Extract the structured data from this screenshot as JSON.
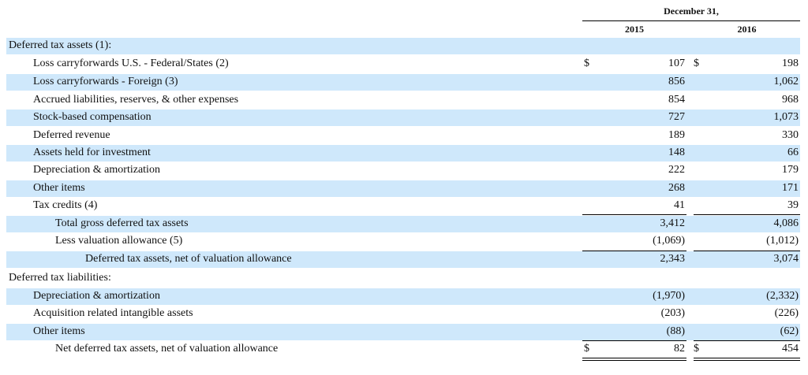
{
  "header": {
    "period": "December 31,",
    "year1": "2015",
    "year2": "2016"
  },
  "currency_symbol": "$",
  "rows": [
    {
      "label": "Deferred tax assets (1):",
      "v1": "",
      "v2": "",
      "shaded": true
    },
    {
      "label": "Loss carryforwards U.S. - Federal/States (2)",
      "v1": "107",
      "v2": "198",
      "shaded": false
    },
    {
      "label": "Loss carryforwards - Foreign (3)",
      "v1": "856",
      "v2": "1,062",
      "shaded": true
    },
    {
      "label": "Accrued liabilities, reserves, & other expenses",
      "v1": "854",
      "v2": "968",
      "shaded": false
    },
    {
      "label": "Stock-based compensation",
      "v1": "727",
      "v2": "1,073",
      "shaded": true
    },
    {
      "label": "Deferred revenue",
      "v1": "189",
      "v2": "330",
      "shaded": false
    },
    {
      "label": "Assets held for investment",
      "v1": "148",
      "v2": "66",
      "shaded": true
    },
    {
      "label": "Depreciation & amortization",
      "v1": "222",
      "v2": "179",
      "shaded": false
    },
    {
      "label": "Other items",
      "v1": "268",
      "v2": "171",
      "shaded": true
    },
    {
      "label": "Tax credits (4)",
      "v1": "41",
      "v2": "39",
      "shaded": false
    },
    {
      "label": "Total gross deferred tax assets",
      "v1": "3,412",
      "v2": "4,086",
      "shaded": true
    },
    {
      "label": "Less valuation allowance (5)",
      "v1": "(1,069)",
      "v2": "(1,012)",
      "shaded": false
    },
    {
      "label": "Deferred tax assets, net of valuation allowance",
      "v1": "2,343",
      "v2": "3,074",
      "shaded": true
    },
    {
      "label": "Deferred tax liabilities:",
      "v1": "",
      "v2": "",
      "shaded": false
    },
    {
      "label": "Depreciation & amortization",
      "v1": "(1,970)",
      "v2": "(2,332)",
      "shaded": true
    },
    {
      "label": "Acquisition related intangible assets",
      "v1": "(203)",
      "v2": "(226)",
      "shaded": false
    },
    {
      "label": "Other items",
      "v1": "(88)",
      "v2": "(62)",
      "shaded": true
    },
    {
      "label": "Net deferred tax assets, net of valuation allowance",
      "v1": "82",
      "v2": "454",
      "shaded": false
    }
  ],
  "colors": {
    "row_shade": "#cfe8fb",
    "text": "#111111",
    "rule": "#000000"
  }
}
